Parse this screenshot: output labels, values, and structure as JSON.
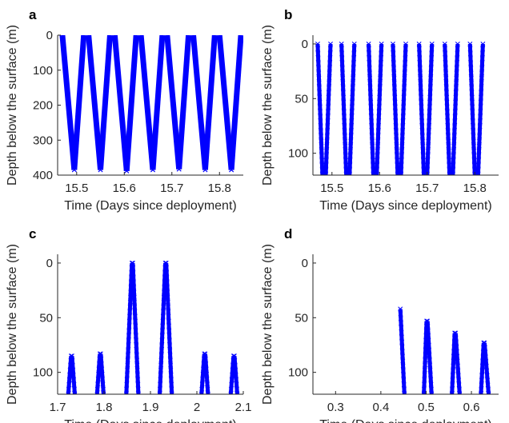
{
  "colors": {
    "series": "#0000ff",
    "axis": "#262626",
    "background": "#ffffff"
  },
  "chart_data": [
    {
      "panel": "a",
      "type": "line",
      "marker": "x",
      "xlabel": "Time (Days since deployment)",
      "ylabel": "Depth below the surface (m)",
      "y_reversed": true,
      "xlim": [
        15.46,
        15.85
      ],
      "ylim": [
        0,
        400
      ],
      "xticks": [
        15.5,
        15.6,
        15.7,
        15.8
      ],
      "yticks": [
        0,
        100,
        200,
        300,
        400
      ],
      "grid": false,
      "profiles": [
        {
          "x": [
            15.47,
            15.495
          ],
          "y": [
            0,
            385
          ]
        },
        {
          "x": [
            15.495,
            15.515
          ],
          "y": [
            385,
            0
          ]
        },
        {
          "x": [
            15.525,
            15.55
          ],
          "y": [
            0,
            385
          ]
        },
        {
          "x": [
            15.55,
            15.57
          ],
          "y": [
            385,
            0
          ]
        },
        {
          "x": [
            15.58,
            15.605
          ],
          "y": [
            0,
            388
          ]
        },
        {
          "x": [
            15.605,
            15.625
          ],
          "y": [
            388,
            0
          ]
        },
        {
          "x": [
            15.635,
            15.66
          ],
          "y": [
            0,
            385
          ]
        },
        {
          "x": [
            15.66,
            15.68
          ],
          "y": [
            385,
            0
          ]
        },
        {
          "x": [
            15.69,
            15.715
          ],
          "y": [
            0,
            383
          ]
        },
        {
          "x": [
            15.715,
            15.735
          ],
          "y": [
            383,
            0
          ]
        },
        {
          "x": [
            15.745,
            15.77
          ],
          "y": [
            0,
            385
          ]
        },
        {
          "x": [
            15.77,
            15.79
          ],
          "y": [
            385,
            0
          ]
        },
        {
          "x": [
            15.8,
            15.825
          ],
          "y": [
            0,
            385
          ]
        },
        {
          "x": [
            15.825,
            15.845
          ],
          "y": [
            385,
            0
          ]
        }
      ]
    },
    {
      "panel": "b",
      "type": "line",
      "marker": "x",
      "xlabel": "Time (Days since deployment)",
      "ylabel": "Depth below the surface (m)",
      "y_reversed": true,
      "xlim": [
        15.46,
        15.85
      ],
      "ylim": [
        -8,
        120
      ],
      "xticks": [
        15.5,
        15.6,
        15.7,
        15.8
      ],
      "yticks": [
        0,
        50,
        100
      ],
      "grid": false,
      "profiles": [
        {
          "x": [
            15.47,
            15.48
          ],
          "y": [
            0,
            120
          ]
        },
        {
          "x": [
            15.487,
            15.497
          ],
          "y": [
            120,
            0
          ]
        },
        {
          "x": [
            15.52,
            15.53
          ],
          "y": [
            0,
            120
          ]
        },
        {
          "x": [
            15.537,
            15.547
          ],
          "y": [
            120,
            0
          ]
        },
        {
          "x": [
            15.577,
            15.587
          ],
          "y": [
            0,
            120
          ]
        },
        {
          "x": [
            15.594,
            15.604
          ],
          "y": [
            120,
            0
          ]
        },
        {
          "x": [
            15.628,
            15.638
          ],
          "y": [
            0,
            120
          ]
        },
        {
          "x": [
            15.645,
            15.655
          ],
          "y": [
            120,
            0
          ]
        },
        {
          "x": [
            15.683,
            15.693
          ],
          "y": [
            0,
            120
          ]
        },
        {
          "x": [
            15.7,
            15.71
          ],
          "y": [
            120,
            0
          ]
        },
        {
          "x": [
            15.737,
            15.747
          ],
          "y": [
            0,
            120
          ]
        },
        {
          "x": [
            15.754,
            15.764
          ],
          "y": [
            120,
            0
          ]
        },
        {
          "x": [
            15.79,
            15.8
          ],
          "y": [
            0,
            120
          ]
        },
        {
          "x": [
            15.807,
            15.817
          ],
          "y": [
            120,
            0
          ]
        }
      ]
    },
    {
      "panel": "c",
      "type": "line",
      "marker": "x",
      "xlabel": "Time (Days since deployment)",
      "ylabel": "Depth below the surface (m)",
      "y_reversed": true,
      "xlim": [
        1.7,
        2.1
      ],
      "ylim": [
        -8,
        120
      ],
      "xticks": [
        1.7,
        1.8,
        1.9,
        2,
        2.1
      ],
      "ytick_values": [
        0,
        50,
        100
      ],
      "yticks": [
        0,
        50,
        100
      ],
      "grid": false,
      "profiles": [
        {
          "x": [
            1.723,
            1.729
          ],
          "y": [
            120,
            85
          ]
        },
        {
          "x": [
            1.731,
            1.737
          ],
          "y": [
            85,
            120
          ]
        },
        {
          "x": [
            1.785,
            1.791
          ],
          "y": [
            120,
            83
          ]
        },
        {
          "x": [
            1.793,
            1.799
          ],
          "y": [
            83,
            120
          ]
        },
        {
          "x": [
            1.848,
            1.86
          ],
          "y": [
            120,
            0
          ]
        },
        {
          "x": [
            1.862,
            1.874
          ],
          "y": [
            0,
            120
          ]
        },
        {
          "x": [
            1.92,
            1.932
          ],
          "y": [
            120,
            0
          ]
        },
        {
          "x": [
            1.934,
            1.946
          ],
          "y": [
            0,
            120
          ]
        },
        {
          "x": [
            2.01,
            2.016
          ],
          "y": [
            120,
            83
          ]
        },
        {
          "x": [
            2.018,
            2.024
          ],
          "y": [
            83,
            120
          ]
        },
        {
          "x": [
            2.073,
            2.079
          ],
          "y": [
            120,
            85
          ]
        },
        {
          "x": [
            2.081,
            2.087
          ],
          "y": [
            85,
            120
          ]
        }
      ]
    },
    {
      "panel": "d",
      "type": "line",
      "marker": "x",
      "xlabel": "Time (Days since deployment)",
      "ylabel": "Depth below the surface (m)",
      "y_reversed": true,
      "xlim": [
        0.25,
        0.66
      ],
      "ylim": [
        -8,
        120
      ],
      "xticks": [
        0.3,
        0.4,
        0.5,
        0.6
      ],
      "yticks": [
        0,
        50,
        100
      ],
      "grid": false,
      "profiles": [
        {
          "x": [
            0.443,
            0.452
          ],
          "y": [
            42,
            120
          ]
        },
        {
          "x": [
            0.495,
            0.501
          ],
          "y": [
            120,
            53
          ]
        },
        {
          "x": [
            0.503,
            0.512
          ],
          "y": [
            53,
            120
          ]
        },
        {
          "x": [
            0.557,
            0.563
          ],
          "y": [
            120,
            64
          ]
        },
        {
          "x": [
            0.565,
            0.574
          ],
          "y": [
            64,
            120
          ]
        },
        {
          "x": [
            0.621,
            0.627
          ],
          "y": [
            120,
            73
          ]
        },
        {
          "x": [
            0.629,
            0.638
          ],
          "y": [
            73,
            120
          ]
        }
      ]
    }
  ]
}
